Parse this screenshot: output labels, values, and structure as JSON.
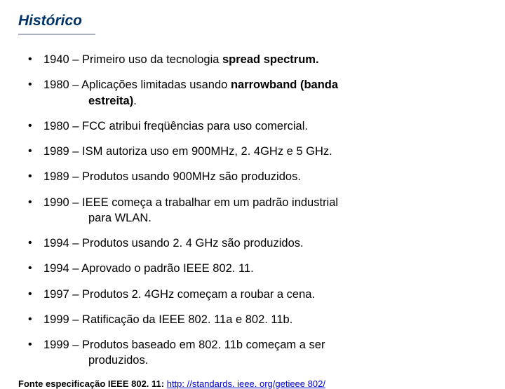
{
  "title": "Histórico",
  "items": [
    {
      "year": "1940",
      "pre": "Primeiro uso da tecnologia ",
      "bold": "spread spectrum.",
      "post": ""
    },
    {
      "year": "1980",
      "pre": "Aplicações limitadas usando ",
      "bold": "narrowband (banda estreita)",
      "post": ".",
      "wrapBold": true
    },
    {
      "year": "1980",
      "pre": "FCC atribui freqüências para uso comercial.",
      "bold": "",
      "post": ""
    },
    {
      "year": "1989",
      "pre": "ISM autoriza uso em 900MHz, 2. 4GHz e 5 GHz.",
      "bold": "",
      "post": ""
    },
    {
      "year": "1989",
      "pre": "Produtos usando 900MHz são produzidos.",
      "bold": "",
      "post": ""
    },
    {
      "year": "1990",
      "pre": "IEEE começa a trabalhar em um padrão industrial para WLAN.",
      "bold": "",
      "post": "",
      "wrap": true
    },
    {
      "year": "1994",
      "pre": "Produtos usando 2. 4 GHz são produzidos.",
      "bold": "",
      "post": ""
    },
    {
      "year": "1994",
      "pre": "Aprovado o padrão IEEE 802. 11.",
      "bold": "",
      "post": ""
    },
    {
      "year": "1997",
      "pre": "Produtos 2. 4GHz começam a roubar a cena.",
      "bold": "",
      "post": ""
    },
    {
      "year": "1999",
      "pre": "Ratificação da IEEE 802. 11a e 802. 11b.",
      "bold": "",
      "post": ""
    },
    {
      "year": "1999",
      "pre": "Produtos baseado em 802. 11b começam a ser produzidos.",
      "bold": "",
      "post": "",
      "wrap": true
    }
  ],
  "source": {
    "label": "Fonte especificação IEEE 802. 11: ",
    "link_text": "http: //standards. ieee. org/getieee 802/",
    "link_href": "http://standards.ieee.org/getieee802/"
  },
  "colors": {
    "title": "#003366",
    "underline": "#aab0c0",
    "text": "#000000",
    "link": "#0000cc",
    "background": "#ffffff"
  },
  "fonts": {
    "family": "Verdana",
    "title_size_pt": 16,
    "body_size_pt": 12,
    "source_size_pt": 10
  }
}
